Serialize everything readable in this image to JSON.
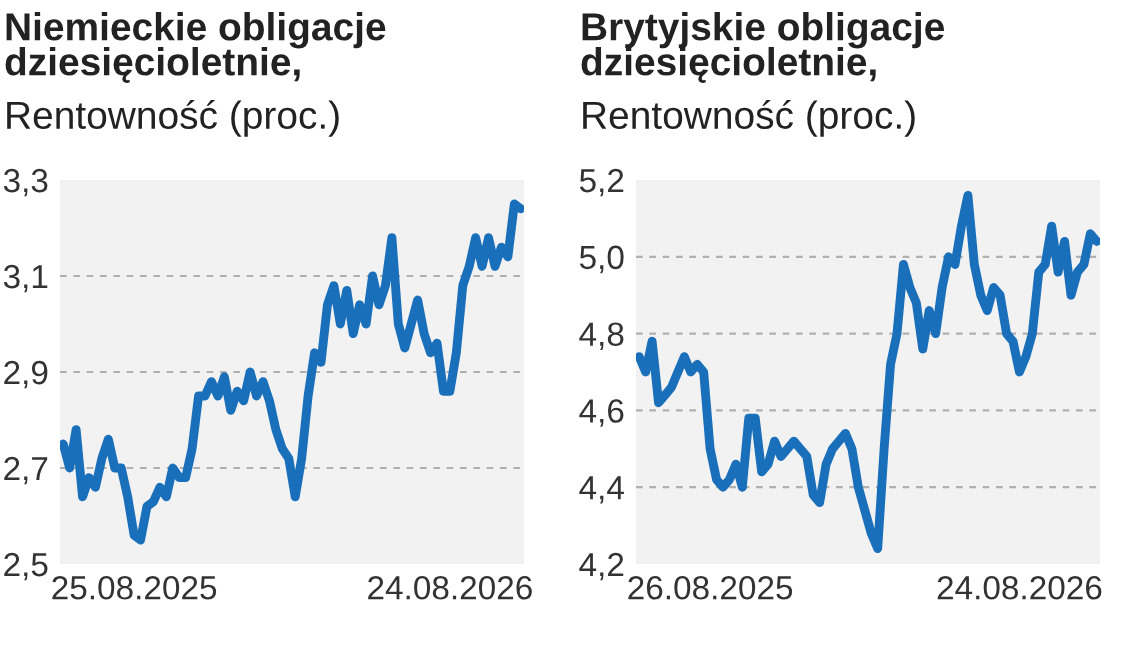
{
  "chart_data": [
    {
      "type": "line",
      "title": "Niemieckie obligacje\ndziesięcioletnie,",
      "subtitle": "Rentowność (proc.)",
      "categories": [
        null,
        null,
        null,
        null,
        null,
        null,
        null,
        null,
        null,
        null,
        null,
        "25.08.2025",
        null,
        null,
        null,
        null,
        null,
        null,
        null,
        null,
        null,
        null,
        null,
        null,
        null,
        null,
        null,
        null,
        null,
        null,
        null,
        null,
        null,
        null,
        null,
        null,
        null,
        null,
        null,
        null,
        null,
        null,
        null,
        null,
        null,
        null,
        null,
        null,
        null,
        null,
        null,
        null,
        null,
        null,
        null,
        null,
        null,
        null,
        null,
        null,
        "24.08.2026",
        null,
        null,
        null,
        null,
        null,
        null,
        null,
        null,
        null,
        null,
        null
      ],
      "series": [
        {
          "color": "#1a6fba",
          "values": [
            2.75,
            2.7,
            2.78,
            2.64,
            2.68,
            2.66,
            2.72,
            2.76,
            2.7,
            2.7,
            2.64,
            2.56,
            2.55,
            2.62,
            2.63,
            2.66,
            2.64,
            2.7,
            2.68,
            2.68,
            2.74,
            2.85,
            2.85,
            2.88,
            2.85,
            2.89,
            2.82,
            2.86,
            2.84,
            2.9,
            2.85,
            2.88,
            2.84,
            2.78,
            2.74,
            2.72,
            2.64,
            2.72,
            2.85,
            2.94,
            2.92,
            3.04,
            3.08,
            3.0,
            3.07,
            2.98,
            3.04,
            3.0,
            3.1,
            3.04,
            3.08,
            3.18,
            3.0,
            2.95,
            3.0,
            3.05,
            2.98,
            2.94,
            2.96,
            2.86,
            2.86,
            2.94,
            3.08,
            3.12,
            3.18,
            3.12,
            3.18,
            3.12,
            3.16,
            3.14,
            3.25,
            3.24
          ]
        }
      ],
      "ylim": [
        2.5,
        3.3
      ],
      "yticks": [
        {
          "value": 2.5,
          "label": "2,5"
        },
        {
          "value": 2.7,
          "label": "2,7"
        },
        {
          "value": 2.9,
          "label": "2,9"
        },
        {
          "value": 3.1,
          "label": "3,1"
        },
        {
          "value": 3.3,
          "label": "3,3"
        }
      ],
      "grid": "y",
      "legend": false
    },
    {
      "type": "line",
      "title": "Brytyjskie obligacje\ndziesięcioletnie,",
      "subtitle": "Rentowność (proc.)",
      "categories": [
        null,
        null,
        null,
        null,
        null,
        null,
        null,
        null,
        null,
        null,
        null,
        "26.08.2025",
        null,
        null,
        null,
        null,
        null,
        null,
        null,
        null,
        null,
        null,
        null,
        null,
        null,
        null,
        null,
        null,
        null,
        null,
        null,
        null,
        null,
        null,
        null,
        null,
        null,
        null,
        null,
        null,
        null,
        null,
        null,
        null,
        null,
        null,
        null,
        null,
        null,
        null,
        null,
        null,
        null,
        null,
        null,
        null,
        null,
        null,
        null,
        "24.08.2026",
        null,
        null,
        null,
        null,
        null,
        null,
        null,
        null,
        null,
        null,
        null,
        null
      ],
      "series": [
        {
          "color": "#1a6fba",
          "values": [
            4.74,
            4.7,
            4.78,
            4.62,
            4.64,
            4.66,
            4.7,
            4.74,
            4.7,
            4.72,
            4.7,
            4.5,
            4.42,
            4.4,
            4.42,
            4.46,
            4.4,
            4.58,
            4.58,
            4.44,
            4.46,
            4.52,
            4.48,
            4.5,
            4.52,
            4.5,
            4.48,
            4.38,
            4.36,
            4.46,
            4.5,
            4.52,
            4.54,
            4.5,
            4.4,
            4.34,
            4.28,
            4.24,
            4.5,
            4.72,
            4.8,
            4.98,
            4.92,
            4.88,
            4.76,
            4.86,
            4.8,
            4.92,
            5.0,
            4.98,
            5.08,
            5.16,
            4.98,
            4.9,
            4.86,
            4.92,
            4.9,
            4.8,
            4.78,
            4.7,
            4.74,
            4.8,
            4.96,
            4.98,
            5.08,
            4.96,
            5.04,
            4.9,
            4.96,
            4.98,
            5.06,
            5.04
          ]
        }
      ],
      "ylim": [
        4.2,
        5.2
      ],
      "yticks": [
        {
          "value": 4.2,
          "label": "4,2"
        },
        {
          "value": 4.4,
          "label": "4,4"
        },
        {
          "value": 4.6,
          "label": "4,6"
        },
        {
          "value": 4.8,
          "label": "4,8"
        },
        {
          "value": 5.0,
          "label": "5,0"
        },
        {
          "value": 5.2,
          "label": "5,2"
        }
      ],
      "grid": "y",
      "legend": false
    }
  ]
}
